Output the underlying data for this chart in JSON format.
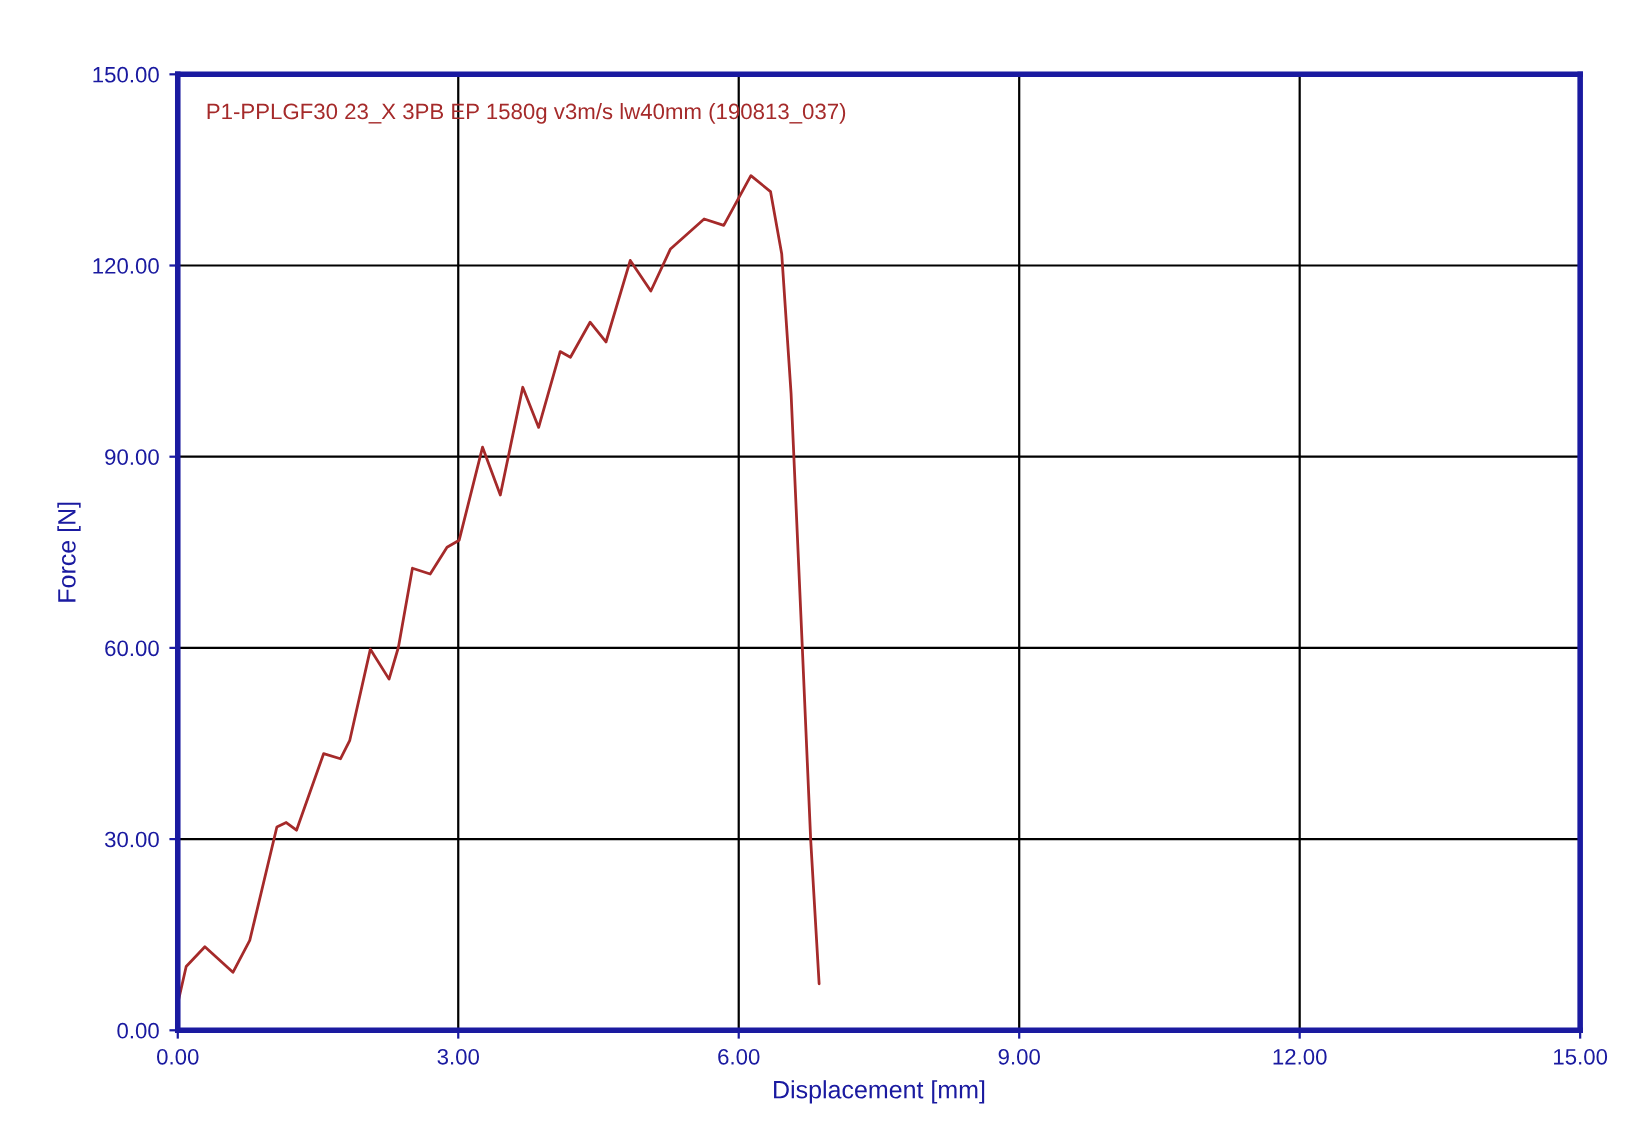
{
  "chart_data": {
    "type": "line",
    "xlabel": "Displacement [mm]",
    "ylabel": "Force [N]",
    "series": [
      {
        "name": "P1-PPLGF30 23_X 3PB EP 1580g v3m/s lw40mm (190813_037)",
        "color": "#a52a2a",
        "x": [
          0,
          0.09,
          0.29,
          0.59,
          0.77,
          1.06,
          1.16,
          1.27,
          1.56,
          1.74,
          1.84,
          2.06,
          2.26,
          2.36,
          2.51,
          2.7,
          2.88,
          3.01,
          3.26,
          3.45,
          3.69,
          3.86,
          4.09,
          4.2,
          4.41,
          4.58,
          4.84,
          5.06,
          5.27,
          5.63,
          5.84,
          6.13,
          6.34,
          6.46,
          6.56,
          6.68,
          6.77,
          6.86
        ],
        "values": [
          4.2,
          10,
          13.1,
          9.1,
          14.1,
          31.9,
          32.6,
          31.4,
          43.4,
          42.6,
          45.5,
          59.8,
          55.1,
          60.1,
          72.5,
          71.6,
          75.8,
          76.9,
          91.5,
          84,
          100.9,
          94.6,
          106.5,
          105.6,
          111.1,
          108,
          120.8,
          116,
          122.6,
          127.3,
          126.3,
          134.1,
          131.6,
          121.8,
          99.9,
          60.1,
          29.8,
          7.3
        ]
      }
    ],
    "xlim": [
      0,
      15
    ],
    "ylim": [
      0,
      150
    ],
    "xticks": [
      {
        "value": 0,
        "label": "0.00"
      },
      {
        "value": 3,
        "label": "3.00"
      },
      {
        "value": 6,
        "label": "6.00"
      },
      {
        "value": 9,
        "label": "9.00"
      },
      {
        "value": 12,
        "label": "12.00"
      },
      {
        "value": 15,
        "label": "15.00"
      }
    ],
    "yticks": [
      {
        "value": 0,
        "label": "0.00"
      },
      {
        "value": 30,
        "label": "30.00"
      },
      {
        "value": 60,
        "label": "60.00"
      },
      {
        "value": 90,
        "label": "90.00"
      },
      {
        "value": 120,
        "label": "120.00"
      },
      {
        "value": 150,
        "label": "150.00"
      }
    ],
    "grid": true,
    "line_style": "solid"
  }
}
